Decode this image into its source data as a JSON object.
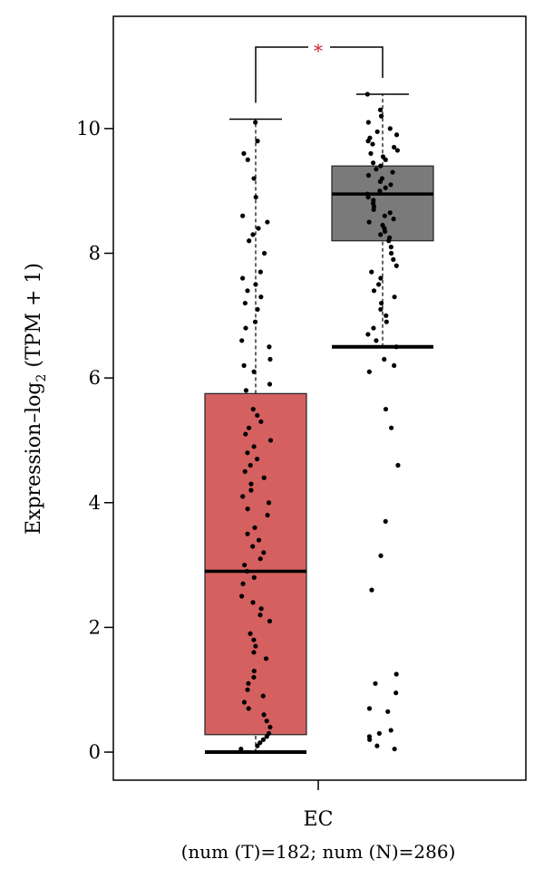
{
  "chart_data": {
    "type": "box",
    "title": "",
    "ylabel_parts": {
      "main": "Expression–log",
      "sub": "2",
      "unit": " (TPM + 1)"
    },
    "y_ticks": [
      "0",
      "2",
      "4",
      "6",
      "8",
      "10"
    ],
    "y_tick_values": [
      0,
      2,
      4,
      6,
      8,
      10
    ],
    "ylim": [
      -0.45,
      11.8
    ],
    "category": "EC",
    "category_subtitle": "(num (T)=182; num (N)=286)",
    "significance": "*",
    "colors": {
      "tumor": "#d46060",
      "normal": "#7a7a7a",
      "points": "#000000",
      "significance": "#cc2222"
    },
    "series": [
      {
        "group": "T",
        "n": 182,
        "box": {
          "whisker_low": 0.0,
          "q1": 0.28,
          "median": 2.9,
          "q3": 5.75,
          "whisker_high": 10.15
        },
        "points": [
          10.1,
          9.8,
          9.6,
          9.5,
          9.2,
          8.9,
          8.6,
          8.5,
          8.4,
          8.3,
          8.2,
          8.0,
          7.7,
          7.6,
          7.5,
          7.4,
          7.3,
          7.2,
          7.1,
          6.9,
          6.8,
          6.6,
          6.5,
          6.3,
          6.2,
          6.1,
          5.9,
          5.8,
          5.5,
          5.4,
          5.3,
          5.2,
          5.1,
          5.0,
          4.9,
          4.8,
          4.7,
          4.6,
          4.5,
          4.4,
          4.3,
          4.2,
          4.1,
          4.0,
          3.9,
          3.8,
          3.6,
          3.5,
          3.4,
          3.3,
          3.2,
          3.1,
          3.0,
          2.9,
          2.8,
          2.7,
          2.5,
          2.4,
          2.3,
          2.2,
          2.1,
          1.9,
          1.8,
          1.7,
          1.6,
          1.5,
          1.3,
          1.2,
          1.1,
          1.0,
          0.9,
          0.8,
          0.7,
          0.6,
          0.5,
          0.4,
          0.3,
          0.25,
          0.2,
          0.15,
          0.1,
          0.05
        ]
      },
      {
        "group": "N",
        "n": 286,
        "box": {
          "whisker_low": 6.5,
          "q1": 8.2,
          "median": 8.95,
          "q3": 9.4,
          "whisker_high": 10.55
        },
        "points": [
          10.55,
          10.3,
          10.2,
          10.1,
          10.0,
          9.95,
          9.9,
          9.85,
          9.8,
          9.75,
          9.7,
          9.65,
          9.6,
          9.55,
          9.5,
          9.45,
          9.4,
          9.35,
          9.3,
          9.25,
          9.2,
          9.15,
          9.1,
          9.05,
          9.0,
          8.95,
          8.9,
          8.85,
          8.8,
          8.75,
          8.7,
          8.65,
          8.6,
          8.55,
          8.5,
          8.45,
          8.4,
          8.35,
          8.3,
          8.25,
          8.2,
          8.1,
          8.0,
          7.9,
          7.8,
          7.7,
          7.6,
          7.5,
          7.4,
          7.3,
          7.2,
          7.1,
          7.0,
          6.9,
          6.8,
          6.7,
          6.6,
          6.5,
          6.3,
          6.2,
          6.1,
          5.5,
          5.2,
          4.6,
          3.7,
          3.15,
          2.6,
          1.25,
          1.1,
          0.95,
          0.7,
          0.65,
          0.35,
          0.3,
          0.25,
          0.2,
          0.1,
          0.05
        ]
      }
    ]
  }
}
